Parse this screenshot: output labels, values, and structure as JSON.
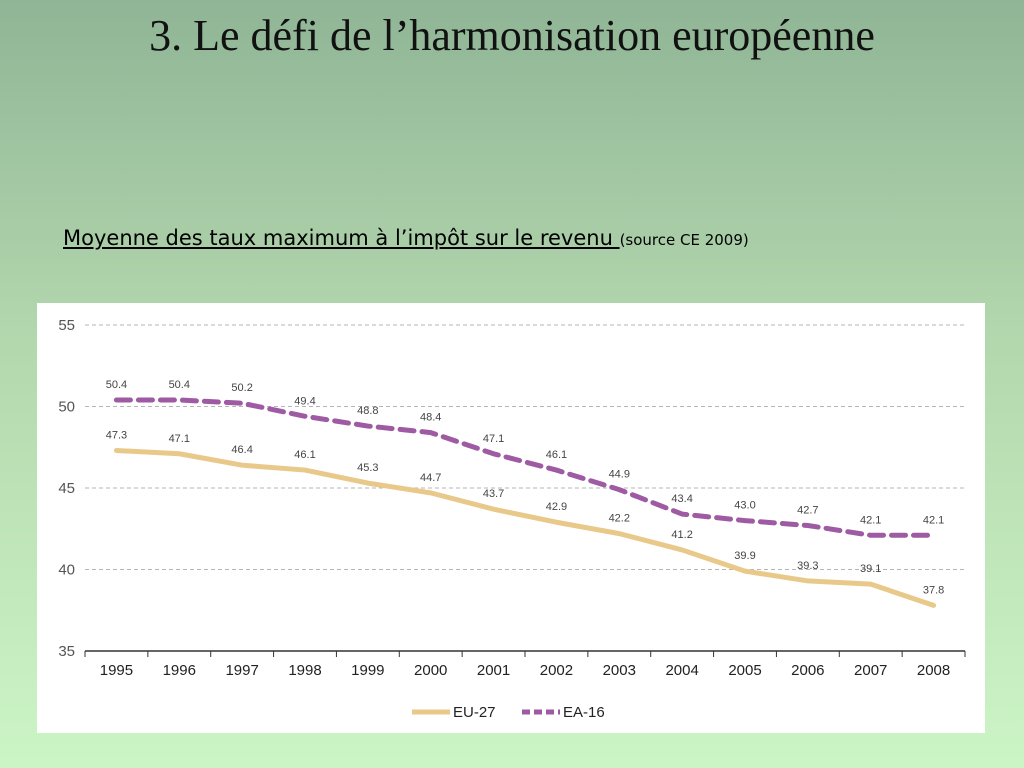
{
  "title": "3. Le défi de l’harmonisation européenne",
  "subtitle": {
    "main": "Moyenne des taux maximum à l’impôt sur le revenu ",
    "source": "(source CE 2009)"
  },
  "chart_data": {
    "type": "line",
    "categories": [
      "1995",
      "1996",
      "1997",
      "1998",
      "1999",
      "2000",
      "2001",
      "2002",
      "2003",
      "2004",
      "2005",
      "2006",
      "2007",
      "2008"
    ],
    "yticks": [
      "35",
      "40",
      "45",
      "50",
      "55"
    ],
    "ylim": [
      35,
      55
    ],
    "grid": true,
    "legend_position": "bottom-center",
    "series": [
      {
        "name": "EU-27",
        "color": "#e8c98a",
        "style": "solid",
        "values": [
          47.3,
          47.1,
          46.4,
          46.1,
          45.3,
          44.7,
          43.7,
          42.9,
          42.2,
          41.2,
          39.9,
          39.3,
          39.1,
          37.8
        ],
        "labels": [
          "47.3",
          "47.1",
          "46.4",
          "46.1",
          "45.3",
          "44.7",
          "43.7",
          "42.9",
          "42.2",
          "41.2",
          "39.9",
          "39.3",
          "39.1",
          "37.8"
        ]
      },
      {
        "name": "EA-16",
        "color": "#9e5aa2",
        "style": "dashed",
        "values": [
          50.4,
          50.4,
          50.2,
          49.4,
          48.8,
          48.4,
          47.1,
          46.1,
          44.9,
          43.4,
          43.0,
          42.7,
          42.1,
          42.1
        ],
        "labels": [
          "50.4",
          "50.4",
          "50.2",
          "49.4",
          "48.8",
          "48.4",
          "47.1",
          "46.1",
          "44.9",
          "43.4",
          "43.0",
          "42.7",
          "42.1",
          "42.1"
        ]
      }
    ]
  }
}
